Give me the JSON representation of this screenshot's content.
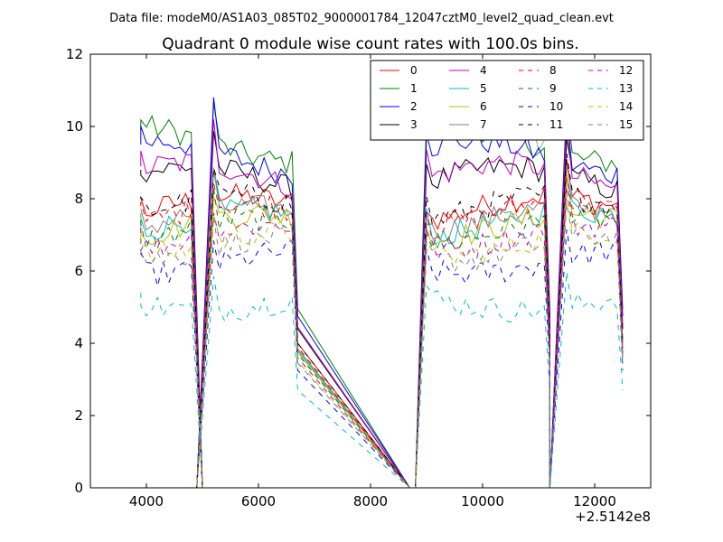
{
  "chart_data": {
    "type": "line",
    "suptitle": "Data file: modeM0/AS1A03_085T02_9000001784_12047cztM0_level2_quad_clean.evt",
    "title": "Quadrant 0 module wise count rates with 100.0s bins.",
    "xlabel": "",
    "ylabel": "",
    "x_offset_label": "+2.5142e8",
    "xlim": [
      3000,
      13000
    ],
    "ylim": [
      0,
      12
    ],
    "xticks": [
      4000,
      6000,
      8000,
      10000,
      12000
    ],
    "yticks": [
      0,
      2,
      4,
      6,
      8,
      10,
      12
    ],
    "legend_position": "upper-right",
    "legend_columns": 4,
    "segments": [
      {
        "x_start": 3900,
        "x_end": 4800
      },
      {
        "x_start": 5200,
        "x_end": 6600
      },
      {
        "x_start": 9000,
        "x_end": 11100
      },
      {
        "x_start": 11500,
        "x_end": 12400
      }
    ],
    "series": [
      {
        "name": "0",
        "color": "#ff0000",
        "dash": "solid",
        "level": 8.0
      },
      {
        "name": "1",
        "color": "#008000",
        "dash": "solid",
        "level": 9.9
      },
      {
        "name": "2",
        "color": "#0000ff",
        "dash": "solid",
        "level": 9.5
      },
      {
        "name": "3",
        "color": "#000000",
        "dash": "solid",
        "level": 8.8
      },
      {
        "name": "4",
        "color": "#bf00bf",
        "dash": "solid",
        "level": 8.9
      },
      {
        "name": "5",
        "color": "#00bfbf",
        "dash": "solid",
        "level": 7.6
      },
      {
        "name": "6",
        "color": "#bfbf00",
        "dash": "solid",
        "level": 7.5
      },
      {
        "name": "7",
        "color": "#808080",
        "dash": "solid",
        "level": 7.7
      },
      {
        "name": "8",
        "color": "#ff0000",
        "dash": "dashed",
        "level": 7.8
      },
      {
        "name": "9",
        "color": "#008000",
        "dash": "dashed",
        "level": 7.4
      },
      {
        "name": "10",
        "color": "#0000ff",
        "dash": "dashed",
        "level": 6.5
      },
      {
        "name": "11",
        "color": "#000000",
        "dash": "dashed",
        "level": 8.0
      },
      {
        "name": "12",
        "color": "#bf00bf",
        "dash": "dashed",
        "level": 7.2
      },
      {
        "name": "13",
        "color": "#00bfbf",
        "dash": "dashed",
        "level": 5.4
      },
      {
        "name": "14",
        "color": "#bfbf00",
        "dash": "dashed",
        "level": 7.0
      },
      {
        "name": "15",
        "color": "#808080",
        "dash": "dashed",
        "level": 6.9
      }
    ],
    "overlay_series": {
      "color": "#80c080",
      "segment_index": 2,
      "level": 10.4
    }
  }
}
